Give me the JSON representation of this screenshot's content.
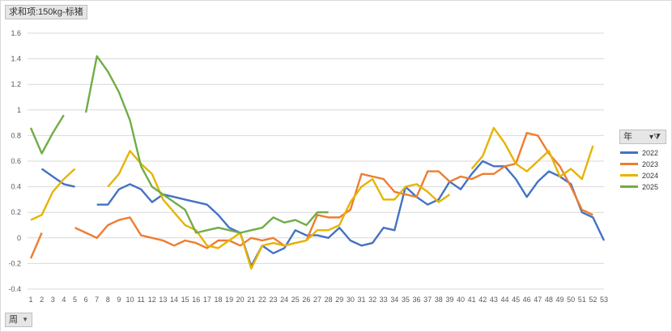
{
  "title_button": "求和项:150kg-标猪",
  "legend_button": "年",
  "axis_button": "周",
  "chart_data": {
    "type": "line",
    "x": [
      1,
      2,
      3,
      4,
      5,
      6,
      7,
      8,
      9,
      10,
      11,
      12,
      13,
      14,
      15,
      16,
      17,
      18,
      19,
      20,
      21,
      22,
      23,
      24,
      25,
      26,
      27,
      28,
      29,
      30,
      31,
      32,
      33,
      34,
      35,
      36,
      37,
      38,
      39,
      40,
      41,
      42,
      43,
      44,
      45,
      46,
      47,
      48,
      49,
      50,
      51,
      52,
      53
    ],
    "ylim": [
      -0.4,
      1.6
    ],
    "yticks": [
      -0.4,
      -0.2,
      0,
      0.2,
      0.4,
      0.6,
      0.8,
      1,
      1.2,
      1.4,
      1.6
    ],
    "grid": true,
    "legend_position": "right",
    "series": [
      {
        "name": "2022",
        "color": "#4472C4",
        "values": [
          null,
          0.54,
          0.48,
          0.42,
          0.4,
          null,
          0.26,
          0.26,
          0.38,
          0.42,
          0.38,
          0.28,
          0.34,
          0.32,
          0.3,
          0.28,
          0.26,
          0.18,
          0.08,
          0.04,
          -0.22,
          -0.06,
          -0.12,
          -0.08,
          0.06,
          0.02,
          0.02,
          0.0,
          0.08,
          -0.02,
          -0.06,
          -0.04,
          0.08,
          0.06,
          0.4,
          0.32,
          0.26,
          0.3,
          0.44,
          0.38,
          0.5,
          0.6,
          0.56,
          0.56,
          0.46,
          0.32,
          0.44,
          0.52,
          0.48,
          0.42,
          0.2,
          0.16,
          -0.02
        ]
      },
      {
        "name": "2023",
        "color": "#ED7D31",
        "values": [
          -0.16,
          0.04,
          null,
          null,
          0.08,
          0.04,
          0.0,
          0.1,
          0.14,
          0.16,
          0.02,
          0.0,
          -0.02,
          -0.06,
          -0.02,
          -0.04,
          -0.08,
          -0.02,
          -0.02,
          -0.06,
          0.0,
          -0.02,
          0.0,
          -0.06,
          -0.04,
          -0.02,
          0.18,
          0.16,
          0.16,
          0.22,
          0.5,
          0.48,
          0.46,
          0.36,
          0.34,
          0.32,
          0.52,
          0.52,
          0.44,
          0.48,
          0.46,
          0.5,
          0.5,
          0.56,
          0.58,
          0.82,
          0.8,
          0.66,
          0.56,
          0.4,
          0.22,
          0.18,
          null
        ]
      },
      {
        "name": "2024",
        "color": "#E6B400",
        "values": [
          0.14,
          0.18,
          0.36,
          0.46,
          0.54,
          null,
          null,
          0.4,
          0.5,
          0.68,
          0.58,
          0.5,
          0.3,
          0.2,
          0.1,
          0.06,
          -0.06,
          -0.08,
          -0.02,
          0.04,
          -0.24,
          -0.06,
          -0.04,
          -0.06,
          -0.04,
          -0.02,
          0.06,
          0.06,
          0.1,
          0.28,
          0.4,
          0.46,
          0.3,
          0.3,
          0.4,
          0.42,
          0.36,
          0.28,
          0.34,
          null,
          0.54,
          0.64,
          0.86,
          0.74,
          0.58,
          0.52,
          0.6,
          0.68,
          0.48,
          0.54,
          0.46,
          0.72,
          null
        ]
      },
      {
        "name": "2025",
        "color": "#70AD47",
        "values": [
          0.86,
          0.66,
          0.82,
          0.96,
          null,
          0.98,
          1.42,
          1.3,
          1.14,
          0.92,
          0.56,
          0.4,
          0.34,
          0.28,
          0.22,
          0.04,
          0.06,
          0.08,
          0.06,
          0.04,
          0.06,
          0.08,
          0.16,
          0.12,
          0.14,
          0.1,
          0.2,
          0.2,
          null,
          null,
          null,
          null,
          null,
          null,
          null,
          null,
          null,
          null,
          null,
          null,
          null,
          null,
          null,
          null,
          null,
          null,
          null,
          null,
          null,
          null,
          null,
          null,
          null
        ]
      }
    ]
  }
}
